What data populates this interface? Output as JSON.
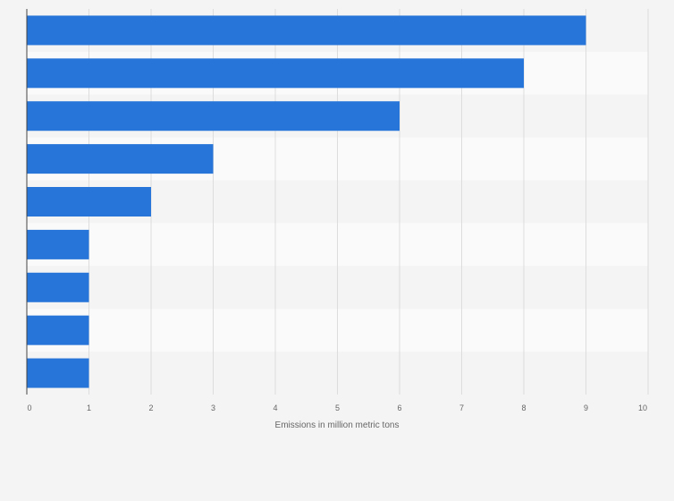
{
  "chart_data": {
    "type": "bar",
    "orientation": "horizontal",
    "categories": [
      "",
      "",
      "",
      "",
      "",
      "",
      "",
      "",
      ""
    ],
    "values": [
      9,
      8,
      6,
      3,
      2,
      1,
      1,
      1,
      1
    ],
    "xlabel": "Emissions in million metric tons",
    "ylabel": "",
    "xlim": [
      0,
      10
    ],
    "xticks": [
      "0",
      "1",
      "2",
      "3",
      "4",
      "5",
      "6",
      "7",
      "8",
      "9",
      "10"
    ],
    "grid": true,
    "legend": "none",
    "colors": {
      "bar": "#2775d8",
      "grid": "#dddddd",
      "axis": "#444444"
    }
  }
}
